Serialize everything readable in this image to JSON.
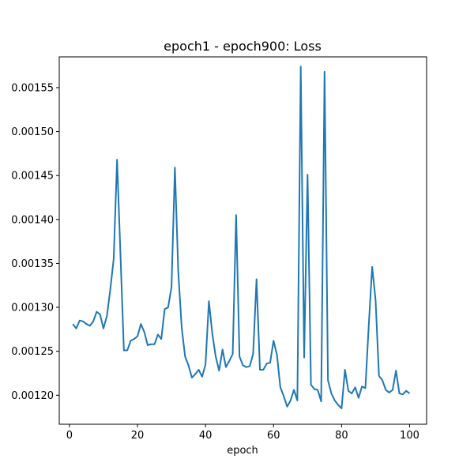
{
  "chart_data": {
    "type": "line",
    "title": "epoch1 - epoch900: Loss",
    "xlabel": "epoch",
    "ylabel": "",
    "xlim": [
      -3,
      105
    ],
    "ylim": [
      0.001167,
      0.001585
    ],
    "xticks": [
      0,
      20,
      40,
      60,
      80,
      100
    ],
    "yticks": [
      0.0012,
      0.00125,
      0.0013,
      0.00135,
      0.0014,
      0.00145,
      0.0015,
      0.00155
    ],
    "ytick_labels": [
      "0.00120",
      "0.00125",
      "0.00130",
      "0.00135",
      "0.00140",
      "0.00145",
      "0.00150",
      "0.00155"
    ],
    "grid": false,
    "colors": {
      "line": "#1f77b4",
      "axes": "#000000"
    },
    "series": [
      {
        "x": [
          1,
          2,
          3,
          4,
          5,
          6,
          7,
          8,
          9,
          10,
          11,
          12,
          13,
          14,
          15,
          16,
          17,
          18,
          19,
          20,
          21,
          22,
          23,
          24,
          25,
          26,
          27,
          28,
          29,
          30,
          31,
          32,
          33,
          34,
          35,
          36,
          37,
          38,
          39,
          40,
          41,
          42,
          43,
          44,
          45,
          46,
          47,
          48,
          49,
          50,
          51,
          52,
          53,
          54,
          55,
          56,
          57,
          58,
          59,
          60,
          61,
          62,
          63,
          64,
          65,
          66,
          67,
          68,
          69,
          70,
          71,
          72,
          73,
          74,
          75,
          76,
          77,
          78,
          79,
          80,
          81,
          82,
          83,
          84,
          85,
          86,
          87,
          88,
          89,
          90,
          91,
          92,
          93,
          94,
          95,
          96,
          97,
          98,
          99,
          100
        ],
        "values": [
          0.001281,
          0.001276,
          0.001285,
          0.001284,
          0.001281,
          0.001279,
          0.001284,
          0.001295,
          0.001292,
          0.001276,
          0.00129,
          0.00132,
          0.001355,
          0.001468,
          0.00136,
          0.001251,
          0.001251,
          0.001262,
          0.001264,
          0.001267,
          0.001281,
          0.001272,
          0.001257,
          0.001258,
          0.001258,
          0.001269,
          0.001264,
          0.001298,
          0.0013,
          0.001323,
          0.001459,
          0.00134,
          0.001277,
          0.001244,
          0.001234,
          0.00122,
          0.001224,
          0.001229,
          0.001221,
          0.001235,
          0.001307,
          0.00127,
          0.001244,
          0.001228,
          0.001252,
          0.001232,
          0.001239,
          0.001247,
          0.001405,
          0.001244,
          0.001234,
          0.001232,
          0.001233,
          0.001247,
          0.001332,
          0.001229,
          0.001229,
          0.001236,
          0.001237,
          0.001262,
          0.001246,
          0.001209,
          0.001199,
          0.001187,
          0.001194,
          0.001206,
          0.001194,
          0.001574,
          0.001243,
          0.001451,
          0.001212,
          0.001207,
          0.001206,
          0.001193,
          0.001568,
          0.001217,
          0.001202,
          0.001194,
          0.001189,
          0.001185,
          0.001229,
          0.001205,
          0.001202,
          0.001209,
          0.001197,
          0.00121,
          0.001208,
          0.00128,
          0.001346,
          0.001308,
          0.001222,
          0.001217,
          0.001206,
          0.001203,
          0.001206,
          0.001228,
          0.001202,
          0.001201,
          0.001205,
          0.001202
        ]
      }
    ]
  }
}
